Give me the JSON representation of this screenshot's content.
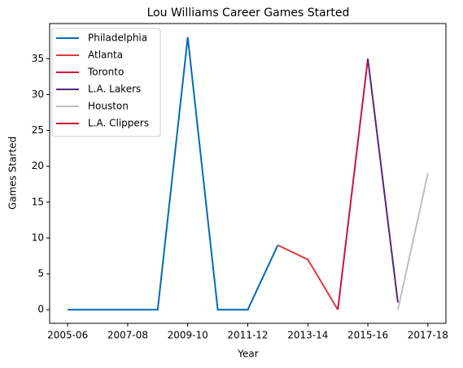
{
  "chart_data": {
    "type": "line",
    "title": "Lou Williams Career Games Started",
    "xlabel": "Year",
    "ylabel": "Games Started",
    "categories": [
      "2005-06",
      null,
      "2007-08",
      null,
      "2009-10",
      null,
      "2011-12",
      null,
      "2013-14",
      null,
      "2015-16",
      null,
      "2017-18"
    ],
    "series": [
      {
        "name": "Philadelphia",
        "color": "#006bb6",
        "values": [
          0,
          0,
          0,
          0,
          38,
          0,
          0,
          9,
          null,
          null,
          null,
          null,
          null
        ]
      },
      {
        "name": "Atlanta",
        "color": "#e03a3e",
        "values": [
          null,
          null,
          null,
          null,
          null,
          null,
          null,
          9,
          7,
          0,
          null,
          null,
          null
        ]
      },
      {
        "name": "Toronto",
        "color": "#ce1141",
        "values": [
          null,
          null,
          null,
          null,
          null,
          null,
          null,
          null,
          null,
          0,
          35,
          null,
          null
        ]
      },
      {
        "name": "L.A. Lakers",
        "color": "#552583",
        "values": [
          null,
          null,
          null,
          null,
          null,
          null,
          null,
          null,
          null,
          null,
          35,
          1,
          null
        ]
      },
      {
        "name": "Houston",
        "color": "#bebebe",
        "values": [
          null,
          null,
          null,
          null,
          null,
          null,
          null,
          null,
          null,
          null,
          null,
          0,
          19
        ]
      },
      {
        "name": "L.A. Clippers",
        "color": "#c8102e",
        "values": [
          null,
          null,
          null,
          null,
          null,
          null,
          null,
          null,
          null,
          null,
          null,
          null,
          19
        ]
      }
    ],
    "ylim": [
      -1.9,
      39.9
    ],
    "yticks": [
      0,
      5,
      10,
      15,
      20,
      25,
      30,
      35
    ],
    "legend": "upper left"
  }
}
